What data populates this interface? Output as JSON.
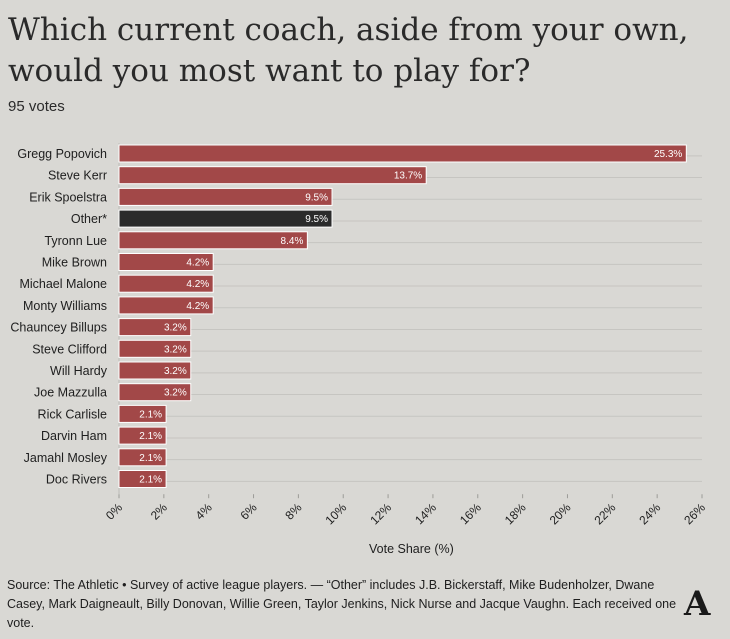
{
  "title": "Which current coach, aside from your own, would you most want to play for?",
  "subtitle": "95 votes",
  "source": "Source: The Athletic • Survey of active league players. — “Other” includes J.B. Bickerstaff, Mike Budenholzer, Dwane Casey, Mark Daigneault, Billy Donovan, Willie Green, Taylor Jenkins, Nick Nurse and Jacque Vaughn. Each received one vote.",
  "logo_letter": "A",
  "chart_data": {
    "type": "bar",
    "orientation": "horizontal",
    "categories": [
      "Gregg Popovich",
      "Steve Kerr",
      "Erik Spoelstra",
      "Other*",
      "Tyronn Lue",
      "Mike Brown",
      "Michael Malone",
      "Monty Williams",
      "Chauncey Billups",
      "Steve Clifford",
      "Will Hardy",
      "Joe Mazzulla",
      "Rick Carlisle",
      "Darvin Ham",
      "Jamahl Mosley",
      "Doc Rivers"
    ],
    "values": [
      25.3,
      13.7,
      9.5,
      9.5,
      8.4,
      4.2,
      4.2,
      4.2,
      3.2,
      3.2,
      3.2,
      3.2,
      2.1,
      2.1,
      2.1,
      2.1
    ],
    "value_labels": [
      "25.3%",
      "13.7%",
      "9.5%",
      "9.5%",
      "8.4%",
      "4.2%",
      "4.2%",
      "4.2%",
      "3.2%",
      "3.2%",
      "3.2%",
      "3.2%",
      "2.1%",
      "2.1%",
      "2.1%",
      "2.1%"
    ],
    "highlight_index": 3,
    "bar_color": "#a24848",
    "highlight_color": "#2b2b2b",
    "xlabel": "Vote Share (%)",
    "ylabel": "",
    "xlim": [
      0,
      26
    ],
    "xticks": [
      0,
      2,
      4,
      6,
      8,
      10,
      12,
      14,
      16,
      18,
      20,
      22,
      24,
      26
    ],
    "xtick_labels": [
      "0%",
      "2%",
      "4%",
      "6%",
      "8%",
      "10%",
      "12%",
      "14%",
      "16%",
      "18%",
      "20%",
      "22%",
      "24%",
      "26%"
    ],
    "grid": true
  }
}
